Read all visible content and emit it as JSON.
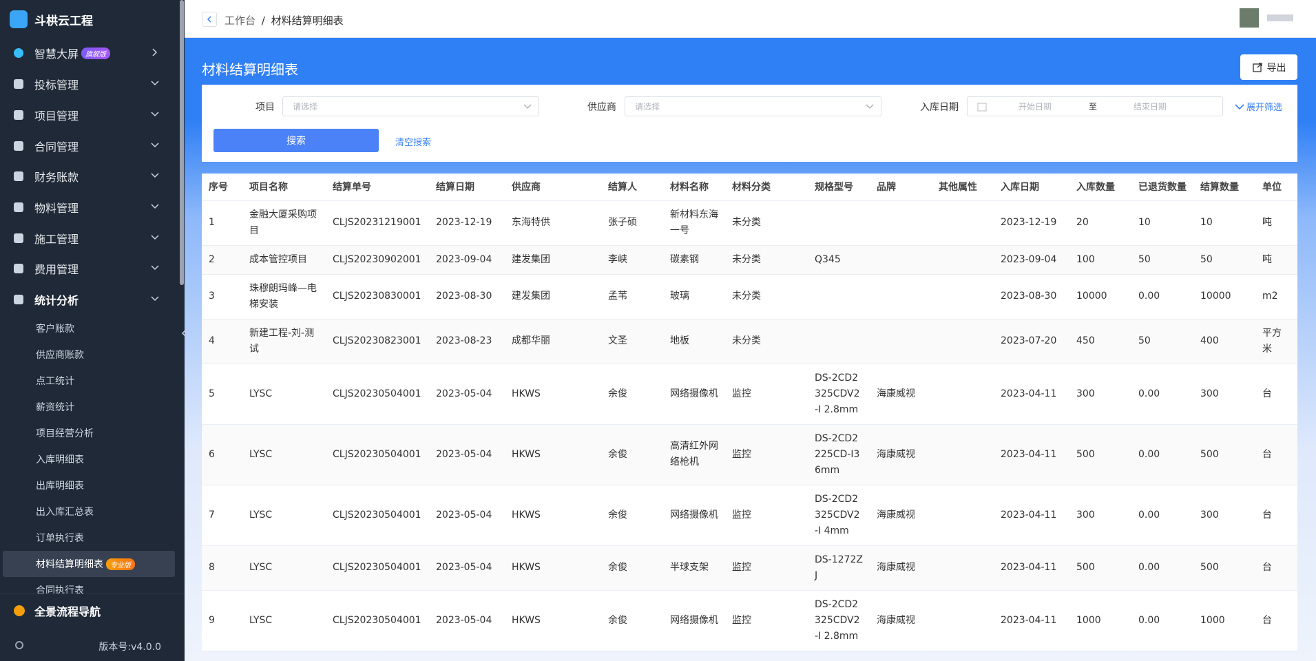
{
  "sidebar": {
    "brand": "斗栱云工程",
    "menu": [
      {
        "label": "智慧大屏",
        "badge": "旗舰版"
      },
      {
        "label": "投标管理"
      },
      {
        "label": "项目管理"
      },
      {
        "label": "合同管理"
      },
      {
        "label": "财务账款"
      },
      {
        "label": "物料管理"
      },
      {
        "label": "施工管理"
      },
      {
        "label": "费用管理"
      },
      {
        "label": "统计分析"
      }
    ],
    "submenu": [
      {
        "label": "客户账款"
      },
      {
        "label": "供应商账款"
      },
      {
        "label": "点工统计"
      },
      {
        "label": "薪资统计"
      },
      {
        "label": "项目经营分析"
      },
      {
        "label": "入库明细表"
      },
      {
        "label": "出库明细表"
      },
      {
        "label": "出入库汇总表"
      },
      {
        "label": "订单执行表"
      },
      {
        "label": "材料结算明细表",
        "badge": "专业版"
      },
      {
        "label": "合同执行表"
      }
    ],
    "footer_nav": "全景流程导航",
    "version": "版本号:v4.0.0"
  },
  "breadcrumb": {
    "home": "工作台",
    "separator": "/",
    "current": "材料结算明细表"
  },
  "page": {
    "title": "材料结算明细表",
    "export": "导出"
  },
  "filters": {
    "project_label": "项目",
    "project_placeholder": "请选择",
    "supplier_label": "供应商",
    "supplier_placeholder": "请选择",
    "date_label": "入库日期",
    "date_start": "开始日期",
    "date_to": "至",
    "date_end": "结束日期",
    "expand": "展开筛选",
    "search": "搜索",
    "clear": "清空搜索"
  },
  "table": {
    "columns": [
      "序号",
      "项目名称",
      "结算单号",
      "结算日期",
      "供应商",
      "结算人",
      "材料名称",
      "材料分类",
      "规格型号",
      "品牌",
      "其他属性",
      "入库日期",
      "入库数量",
      "已退货数量",
      "结算数量",
      "单位"
    ],
    "rows": [
      [
        "1",
        "金融大厦采购项目",
        "CLJS20231219001",
        "2023-12-19",
        "东海特供",
        "张子硕",
        "新材料东海一号",
        "未分类",
        "",
        "",
        "",
        "2023-12-19",
        "20",
        "10",
        "10",
        "吨"
      ],
      [
        "2",
        "成本管控项目",
        "CLJS20230902001",
        "2023-09-04",
        "建发集团",
        "李峡",
        "碳素钢",
        "未分类",
        "Q345",
        "",
        "",
        "2023-09-04",
        "100",
        "50",
        "50",
        "吨"
      ],
      [
        "3",
        "珠穆朗玛峰—电梯安装",
        "CLJS20230830001",
        "2023-08-30",
        "建发集团",
        "孟苇",
        "玻璃",
        "未分类",
        "",
        "",
        "",
        "2023-08-30",
        "10000",
        "0.00",
        "10000",
        "m2"
      ],
      [
        "4",
        "新建工程-刘-测试",
        "CLJS20230823001",
        "2023-08-23",
        "成都华丽",
        "文圣",
        "地板",
        "未分类",
        "",
        "",
        "",
        "2023-07-20",
        "450",
        "50",
        "400",
        "平方米"
      ],
      [
        "5",
        "LYSC",
        "CLJS20230504001",
        "2023-05-04",
        "HKWS",
        "余俊",
        "网络摄像机",
        "监控",
        "DS-2CD2325CDV2-I 2.8mm",
        "海康威视",
        "",
        "2023-04-11",
        "300",
        "0.00",
        "300",
        "台"
      ],
      [
        "6",
        "LYSC",
        "CLJS20230504001",
        "2023-05-04",
        "HKWS",
        "余俊",
        "高清红外网络枪机",
        "监控",
        "DS-2CD2225CD-I3 6mm",
        "海康威视",
        "",
        "2023-04-11",
        "500",
        "0.00",
        "500",
        "台"
      ],
      [
        "7",
        "LYSC",
        "CLJS20230504001",
        "2023-05-04",
        "HKWS",
        "余俊",
        "网络摄像机",
        "监控",
        "DS-2CD2325CDV2-I 4mm",
        "海康威视",
        "",
        "2023-04-11",
        "300",
        "0.00",
        "300",
        "台"
      ],
      [
        "8",
        "LYSC",
        "CLJS20230504001",
        "2023-05-04",
        "HKWS",
        "余俊",
        "半球支架",
        "监控",
        "DS-1272ZJ",
        "海康威视",
        "",
        "2023-04-11",
        "500",
        "0.00",
        "500",
        "台"
      ],
      [
        "9",
        "LYSC",
        "CLJS20230504001",
        "2023-05-04",
        "HKWS",
        "余俊",
        "网络摄像机",
        "监控",
        "DS-2CD2325CDV2-I 2.8mm",
        "海康威视",
        "",
        "2023-04-11",
        "1000",
        "0.00",
        "1000",
        "台"
      ]
    ]
  }
}
